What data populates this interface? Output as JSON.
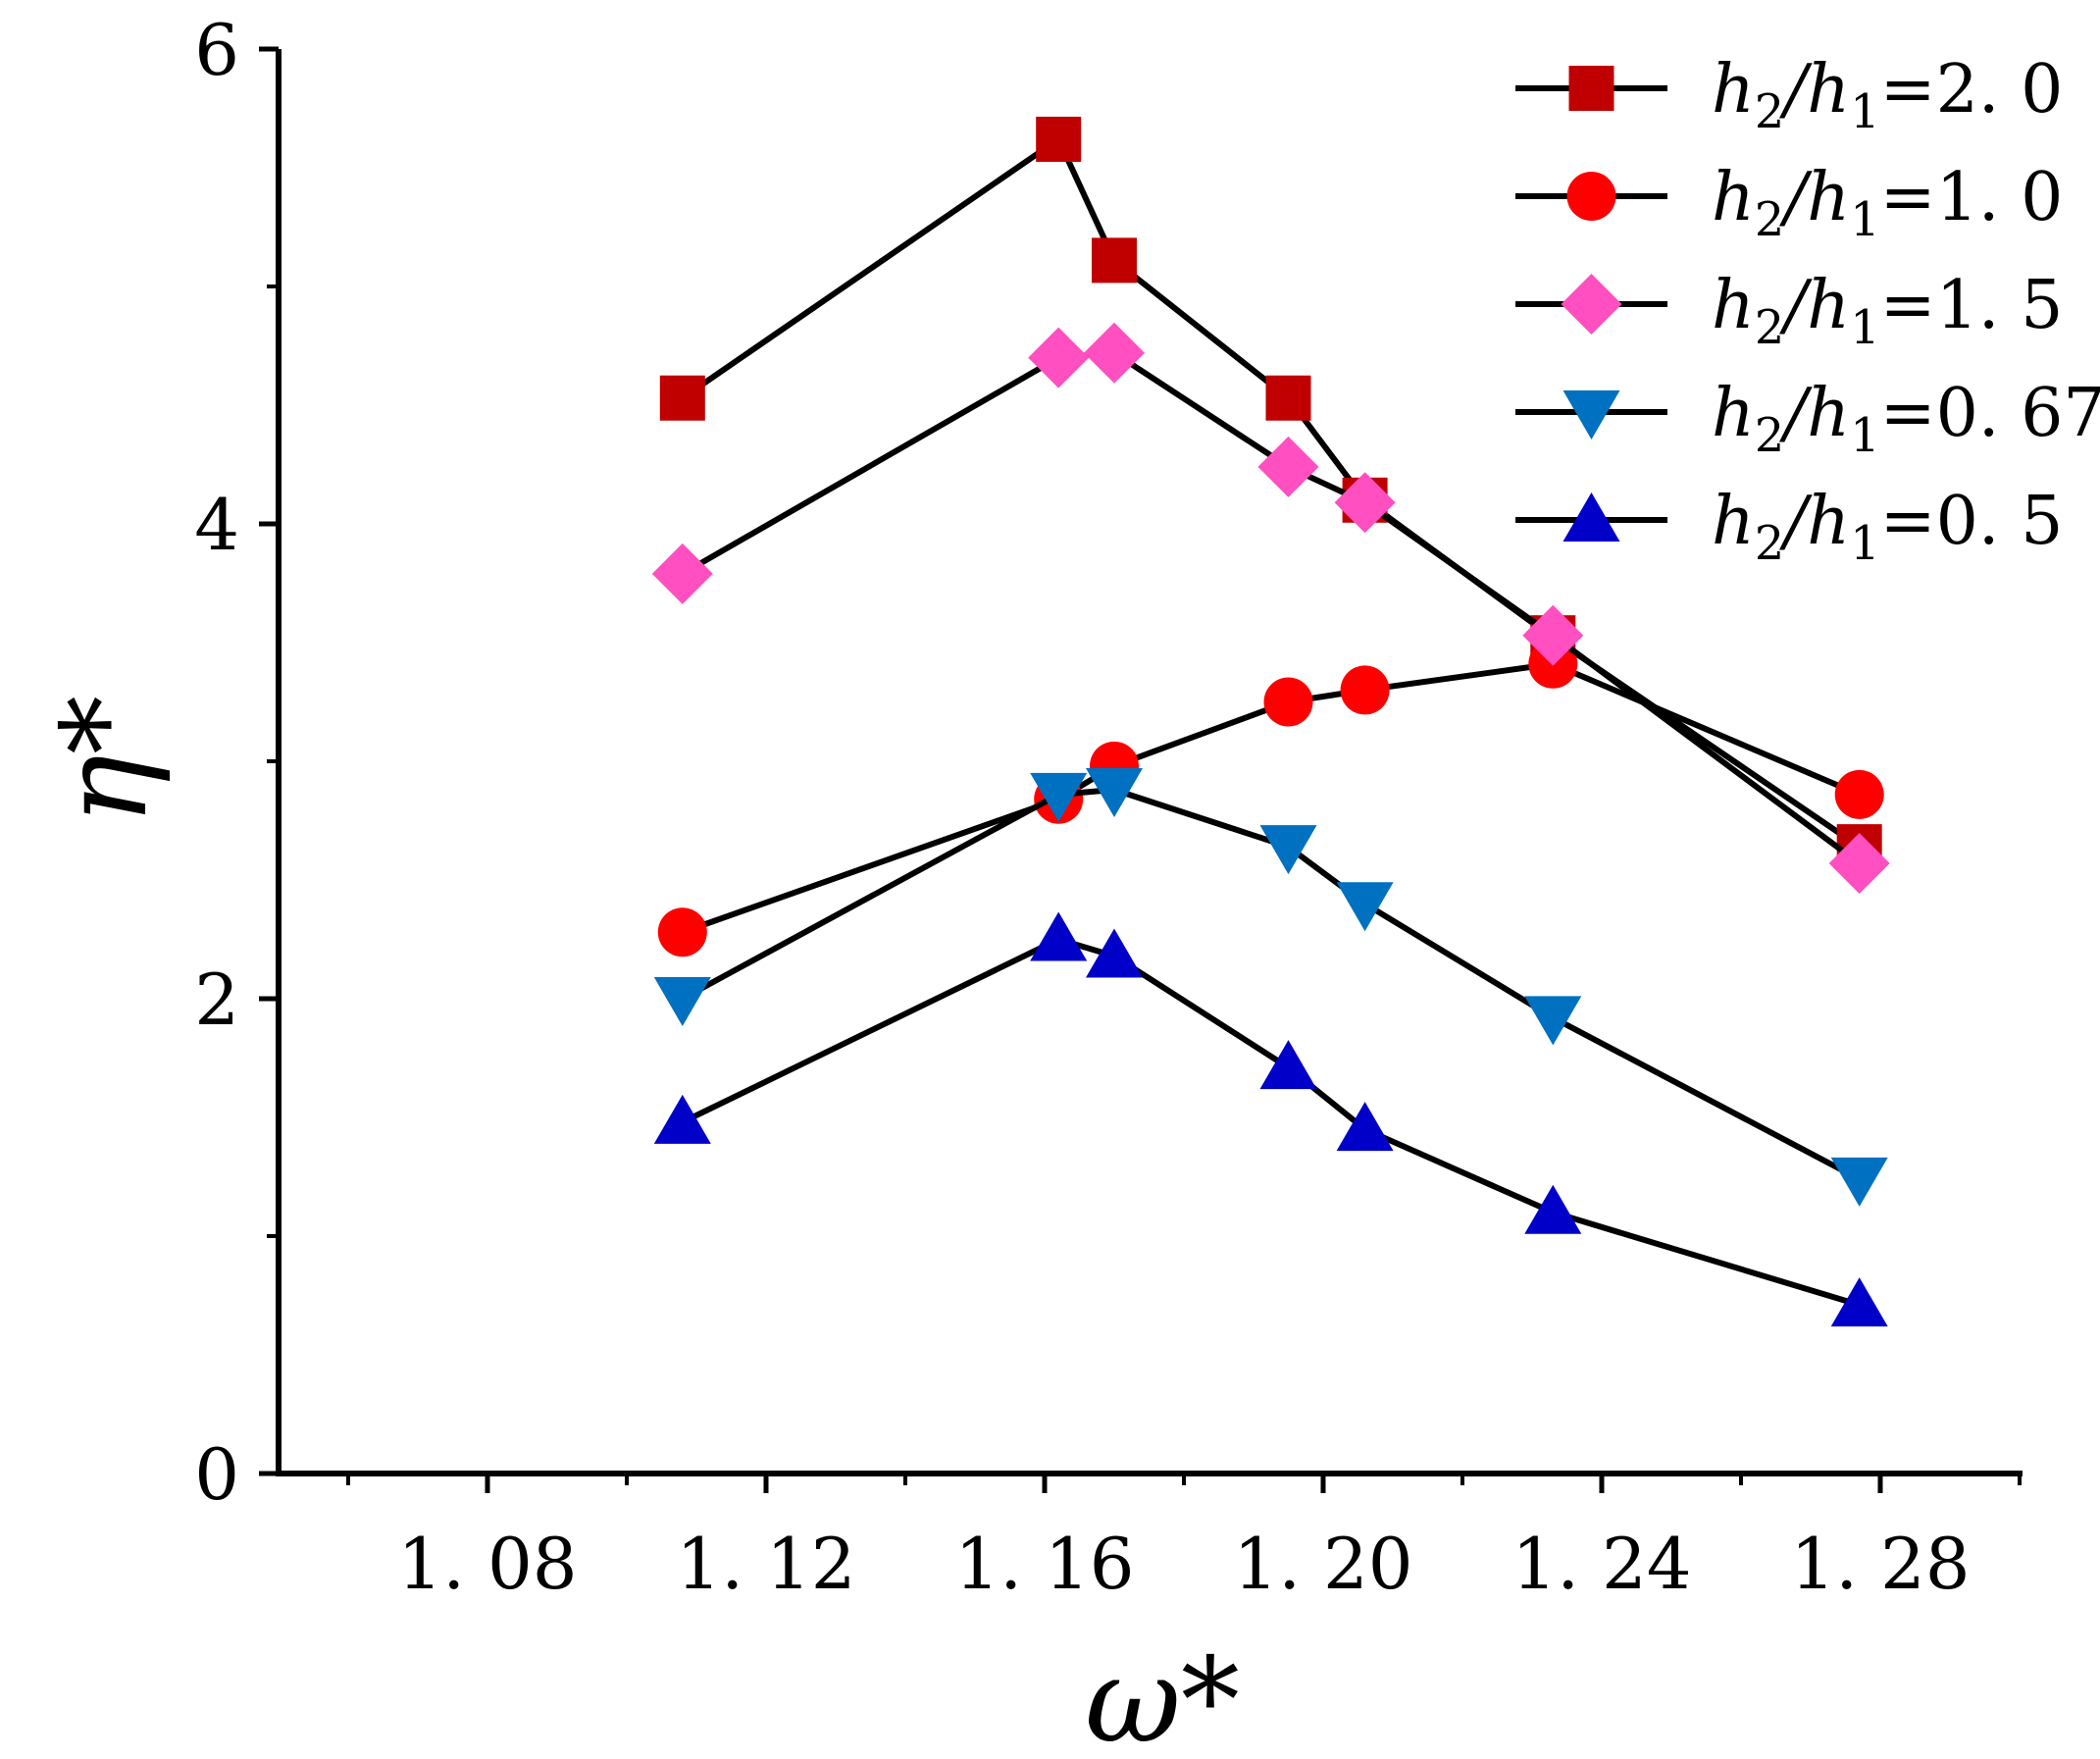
{
  "chart_data": {
    "type": "line",
    "title": "",
    "xlabel": "ω*",
    "ylabel": "η*",
    "xlim": [
      1.05,
      1.3
    ],
    "ylim": [
      0,
      6
    ],
    "x_ticks": [
      1.08,
      1.12,
      1.16,
      1.2,
      1.24,
      1.28
    ],
    "x_tick_labels": [
      "1. 08",
      "1. 12",
      "1. 16",
      "1. 20",
      "1. 24",
      "1. 28"
    ],
    "x_minor_ticks": [
      1.06,
      1.1,
      1.14,
      1.18,
      1.22,
      1.26,
      1.3
    ],
    "y_ticks": [
      0,
      2,
      4,
      6
    ],
    "y_tick_labels": [
      "0",
      "2",
      "4",
      "6"
    ],
    "y_minor_ticks": [
      1,
      3,
      5
    ],
    "legend_position": "top-right",
    "series": [
      {
        "name": "h2/h1=2.0",
        "legend_var_a": "h",
        "legend_sub_a": "2",
        "legend_slash": "/",
        "legend_var_b": "h",
        "legend_sub_b": "1",
        "legend_value": "=2. 0",
        "marker": "square",
        "color": "#c00000",
        "x": [
          1.108,
          1.162,
          1.17,
          1.195,
          1.206,
          1.233,
          1.277
        ],
        "y": [
          4.53,
          5.62,
          5.11,
          4.53,
          4.1,
          3.52,
          2.64
        ]
      },
      {
        "name": "h2/h1=1.0",
        "legend_var_a": "h",
        "legend_sub_a": "2",
        "legend_slash": "/",
        "legend_var_b": "h",
        "legend_sub_b": "1",
        "legend_value": "=1. 0",
        "marker": "circle",
        "color": "#ff0000",
        "x": [
          1.108,
          1.162,
          1.17,
          1.195,
          1.206,
          1.233,
          1.277
        ],
        "y": [
          2.28,
          2.84,
          2.98,
          3.25,
          3.3,
          3.41,
          2.86
        ]
      },
      {
        "name": "h2/h1=1.5",
        "legend_var_a": "h",
        "legend_sub_a": "2",
        "legend_slash": "/",
        "legend_var_b": "h",
        "legend_sub_b": "1",
        "legend_value": "=1. 5",
        "marker": "diamond",
        "color": "#ff4fc0",
        "x": [
          1.108,
          1.162,
          1.17,
          1.195,
          1.206,
          1.233,
          1.277
        ],
        "y": [
          3.79,
          4.7,
          4.72,
          4.24,
          4.09,
          3.53,
          2.57
        ]
      },
      {
        "name": "h2/h1=0.67",
        "legend_var_a": "h",
        "legend_sub_a": "2",
        "legend_slash": "/",
        "legend_var_b": "h",
        "legend_sub_b": "1",
        "legend_value": "=0. 67",
        "marker": "triangle-down",
        "color": "#0070c0",
        "x": [
          1.108,
          1.162,
          1.17,
          1.195,
          1.206,
          1.233,
          1.277
        ],
        "y": [
          2.0,
          2.86,
          2.88,
          2.64,
          2.4,
          1.92,
          1.24
        ]
      },
      {
        "name": "h2/h1=0.5",
        "legend_var_a": "h",
        "legend_sub_a": "2",
        "legend_slash": "/",
        "legend_var_b": "h",
        "legend_sub_b": "1",
        "legend_value": "=0. 5",
        "marker": "triangle-up",
        "color": "#0000c8",
        "x": [
          1.108,
          1.162,
          1.17,
          1.195,
          1.206,
          1.233,
          1.277
        ],
        "y": [
          1.48,
          2.25,
          2.18,
          1.71,
          1.45,
          1.1,
          0.71
        ]
      }
    ]
  }
}
